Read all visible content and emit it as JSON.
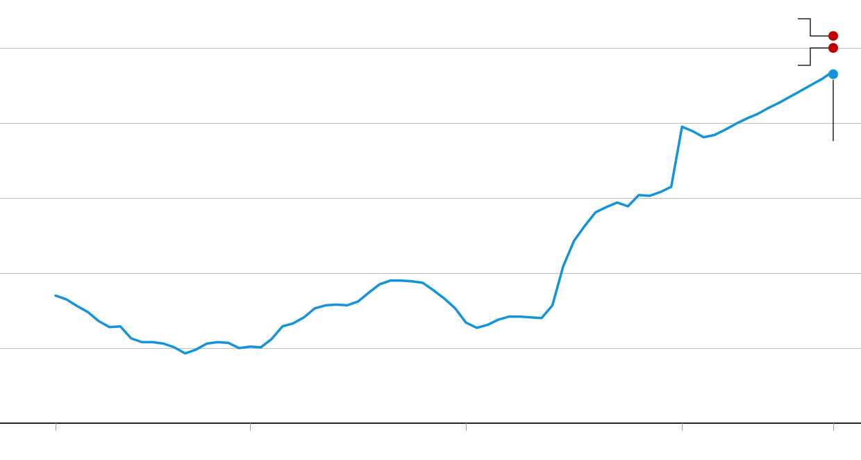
{
  "chart_data": {
    "type": "line",
    "grid": true,
    "legend": "none",
    "colors": {
      "series": "#1393dc",
      "marker_red": "#c00000",
      "grid": "#bdbdbd",
      "axis": "#222222",
      "annotation": "#222222"
    },
    "xlim": [
      0,
      72
    ],
    "ylim": [
      0,
      5
    ],
    "gridlines_y": [
      1,
      2,
      3,
      4,
      5
    ],
    "x_ticks": [
      0,
      18,
      38,
      58,
      72
    ],
    "series": [
      {
        "values": [
          [
            0,
            1.7
          ],
          [
            1,
            1.65
          ],
          [
            2,
            1.56
          ],
          [
            3,
            1.48
          ],
          [
            4,
            1.36
          ],
          [
            5,
            1.28
          ],
          [
            6,
            1.29
          ],
          [
            7,
            1.13
          ],
          [
            8,
            1.08
          ],
          [
            9,
            1.08
          ],
          [
            10,
            1.06
          ],
          [
            11,
            1.01
          ],
          [
            12,
            0.93
          ],
          [
            13,
            0.98
          ],
          [
            14,
            1.06
          ],
          [
            15,
            1.08
          ],
          [
            16,
            1.07
          ],
          [
            17,
            1.0
          ],
          [
            18,
            1.02
          ],
          [
            19,
            1.01
          ],
          [
            20,
            1.12
          ],
          [
            21,
            1.29
          ],
          [
            22,
            1.33
          ],
          [
            23,
            1.41
          ],
          [
            24,
            1.53
          ],
          [
            25,
            1.57
          ],
          [
            26,
            1.58
          ],
          [
            27,
            1.57
          ],
          [
            28,
            1.62
          ],
          [
            29,
            1.74
          ],
          [
            30,
            1.85
          ],
          [
            31,
            1.9
          ],
          [
            32,
            1.9
          ],
          [
            33,
            1.89
          ],
          [
            34,
            1.87
          ],
          [
            35,
            1.77
          ],
          [
            36,
            1.66
          ],
          [
            37,
            1.53
          ],
          [
            38,
            1.34
          ],
          [
            39,
            1.27
          ],
          [
            40,
            1.31
          ],
          [
            41,
            1.38
          ],
          [
            42,
            1.42
          ],
          [
            43,
            1.42
          ],
          [
            44,
            1.41
          ],
          [
            45,
            1.4
          ],
          [
            46,
            1.57
          ],
          [
            47,
            2.09
          ],
          [
            48,
            2.43
          ],
          [
            49,
            2.63
          ],
          [
            50,
            2.81
          ],
          [
            51,
            2.88
          ],
          [
            52,
            2.94
          ],
          [
            53,
            2.89
          ],
          [
            54,
            3.04
          ],
          [
            55,
            3.03
          ],
          [
            56,
            3.08
          ],
          [
            57,
            3.15
          ],
          [
            58,
            3.95
          ],
          [
            59,
            3.89
          ],
          [
            60,
            3.81
          ],
          [
            61,
            3.84
          ],
          [
            62,
            3.91
          ],
          [
            63,
            3.99
          ],
          [
            64,
            4.06
          ],
          [
            65,
            4.12
          ],
          [
            66,
            4.2
          ],
          [
            67,
            4.27
          ],
          [
            68,
            4.35
          ],
          [
            69,
            4.43
          ],
          [
            70,
            4.51
          ],
          [
            71,
            4.59
          ],
          [
            71.6,
            4.65
          ]
        ]
      }
    ],
    "markers": [
      {
        "x": 72,
        "y": 4.65,
        "color": "#1393dc"
      },
      {
        "x": 72,
        "y": 5.0,
        "color": "#c00000"
      },
      {
        "x": 72,
        "y": 5.16,
        "color": "#c00000"
      }
    ]
  }
}
